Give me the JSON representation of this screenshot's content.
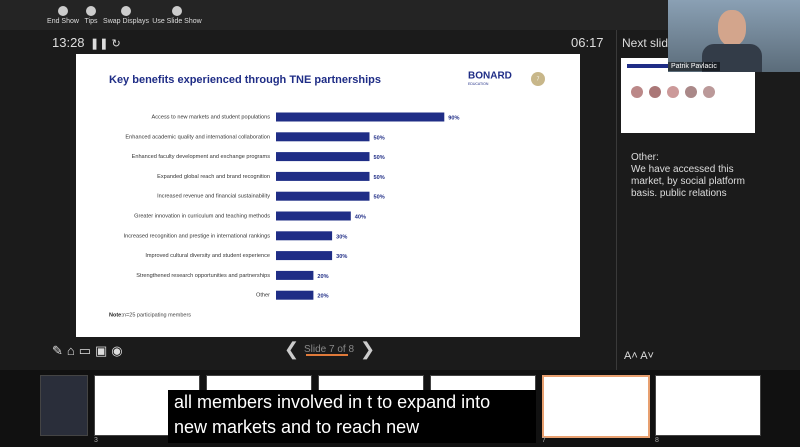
{
  "toolbar": {
    "items": [
      "End Show",
      "Tips",
      "Swap Displays",
      "Use Slide Show"
    ]
  },
  "timer": {
    "elapsed": "13:28",
    "clock": "06:17"
  },
  "next_slide_label": "Next slide",
  "video": {
    "name": "Patrik Pavlacic"
  },
  "notes": [
    "Other:",
    "We have accessed this market, by social platform basis.  public relations"
  ],
  "slide_counter": "Slide 7 of 8",
  "slide": {
    "logo": "BONARD",
    "logo_sub": "EDUCATION",
    "badge": "7",
    "note_label": "Note:",
    "note": "n=25 participating members"
  },
  "chart_data": {
    "type": "bar",
    "orientation": "horizontal",
    "title": "Key benefits experienced through TNE partnerships",
    "categories": [
      "Access to new markets and student populations",
      "Enhanced academic quality and international collaboration",
      "Enhanced faculty development and exchange programs",
      "Expanded global reach and brand recognition",
      "Increased revenue and financial sustainability",
      "Greater innovation in curriculum and teaching methods",
      "Increased recognition and prestige in international rankings",
      "Improved cultural diversity and student experience",
      "Strengthened research opportunities and partnerships",
      "Other"
    ],
    "values": [
      90,
      50,
      50,
      50,
      50,
      40,
      30,
      30,
      20,
      20
    ],
    "value_labels": [
      "90%",
      "50%",
      "50%",
      "50%",
      "50%",
      "40%",
      "30%",
      "30%",
      "20%",
      "20%"
    ],
    "color": "#1f2d86"
  },
  "thumbnails": [
    "3",
    "7",
    "8"
  ],
  "subtitles": [
    "all members involved in t to expand into",
    "new markets and to reach new"
  ]
}
